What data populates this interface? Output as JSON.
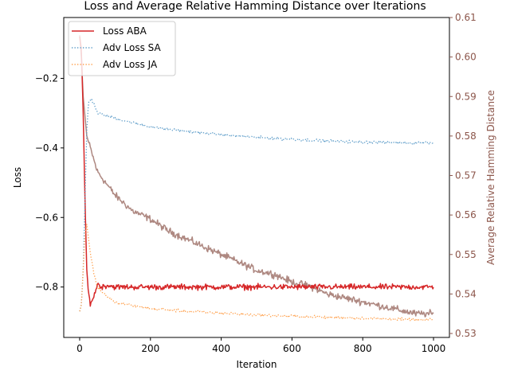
{
  "chart_data": {
    "type": "line",
    "title": "Loss and Average Relative Hamming Distance over Iterations",
    "xlabel": "Iteration",
    "ylabel": "Loss",
    "ylabel_right": "Average Relative Hamming Distance",
    "xlim": [
      -45,
      1045
    ],
    "ylim": [
      -0.945,
      -0.025
    ],
    "ylim_right": [
      0.529,
      0.61
    ],
    "x_ticks": [
      0,
      200,
      400,
      600,
      800,
      1000
    ],
    "y_ticks": [
      -0.8,
      -0.6,
      -0.4,
      -0.2
    ],
    "y_ticks_right": [
      0.53,
      0.54,
      0.55,
      0.56,
      0.57,
      0.58,
      0.59,
      0.6,
      0.61
    ],
    "grid": false,
    "legend_position": "top-left",
    "series": [
      {
        "name": "Loss ABA",
        "axis": "left",
        "color": "#d62728",
        "style": "solid",
        "points": [
          [
            0,
            -0.08
          ],
          [
            5,
            -0.12
          ],
          [
            10,
            -0.3
          ],
          [
            15,
            -0.55
          ],
          [
            20,
            -0.75
          ],
          [
            25,
            -0.82
          ],
          [
            30,
            -0.845
          ],
          [
            40,
            -0.83
          ],
          [
            50,
            -0.79
          ],
          [
            60,
            -0.8
          ],
          [
            80,
            -0.795
          ],
          [
            100,
            -0.8
          ],
          [
            200,
            -0.8
          ],
          [
            400,
            -0.8
          ],
          [
            600,
            -0.8
          ],
          [
            800,
            -0.8
          ],
          [
            1000,
            -0.8
          ]
        ]
      },
      {
        "name": "Adv Loss SA",
        "axis": "left",
        "color": "#5b9bc8",
        "style": "dotted",
        "points": [
          [
            0,
            -0.87
          ],
          [
            5,
            -0.85
          ],
          [
            10,
            -0.75
          ],
          [
            15,
            -0.55
          ],
          [
            20,
            -0.35
          ],
          [
            25,
            -0.27
          ],
          [
            30,
            -0.26
          ],
          [
            40,
            -0.27
          ],
          [
            50,
            -0.3
          ],
          [
            100,
            -0.315
          ],
          [
            200,
            -0.34
          ],
          [
            300,
            -0.352
          ],
          [
            400,
            -0.362
          ],
          [
            500,
            -0.37
          ],
          [
            600,
            -0.375
          ],
          [
            700,
            -0.38
          ],
          [
            800,
            -0.383
          ],
          [
            900,
            -0.385
          ],
          [
            1000,
            -0.385
          ]
        ]
      },
      {
        "name": "Adv Loss JA",
        "axis": "left",
        "color": "#ff9f4a",
        "style": "dotted",
        "points": [
          [
            0,
            -0.87
          ],
          [
            5,
            -0.85
          ],
          [
            10,
            -0.75
          ],
          [
            15,
            -0.65
          ],
          [
            20,
            -0.62
          ],
          [
            25,
            -0.66
          ],
          [
            30,
            -0.7
          ],
          [
            40,
            -0.76
          ],
          [
            50,
            -0.8
          ],
          [
            70,
            -0.82
          ],
          [
            100,
            -0.845
          ],
          [
            200,
            -0.862
          ],
          [
            300,
            -0.87
          ],
          [
            400,
            -0.875
          ],
          [
            500,
            -0.88
          ],
          [
            600,
            -0.884
          ],
          [
            700,
            -0.887
          ],
          [
            800,
            -0.89
          ],
          [
            900,
            -0.893
          ],
          [
            1000,
            -0.895
          ]
        ]
      },
      {
        "name": "Average Relative Hamming Distance",
        "axis": "right",
        "color": "#8c564b",
        "style": "solid",
        "opacity": 0.7,
        "points": [
          [
            0,
            0.6055
          ],
          [
            5,
            0.6
          ],
          [
            10,
            0.59
          ],
          [
            20,
            0.58
          ],
          [
            30,
            0.577
          ],
          [
            40,
            0.574
          ],
          [
            50,
            0.571
          ],
          [
            100,
            0.565
          ],
          [
            150,
            0.561
          ],
          [
            200,
            0.559
          ],
          [
            250,
            0.556
          ],
          [
            300,
            0.554
          ],
          [
            350,
            0.552
          ],
          [
            400,
            0.55
          ],
          [
            450,
            0.548
          ],
          [
            500,
            0.546
          ],
          [
            550,
            0.545
          ],
          [
            600,
            0.543
          ],
          [
            650,
            0.542
          ],
          [
            700,
            0.54
          ],
          [
            750,
            0.539
          ],
          [
            800,
            0.538
          ],
          [
            850,
            0.537
          ],
          [
            900,
            0.536
          ],
          [
            950,
            0.535
          ],
          [
            1000,
            0.535
          ]
        ]
      }
    ]
  }
}
